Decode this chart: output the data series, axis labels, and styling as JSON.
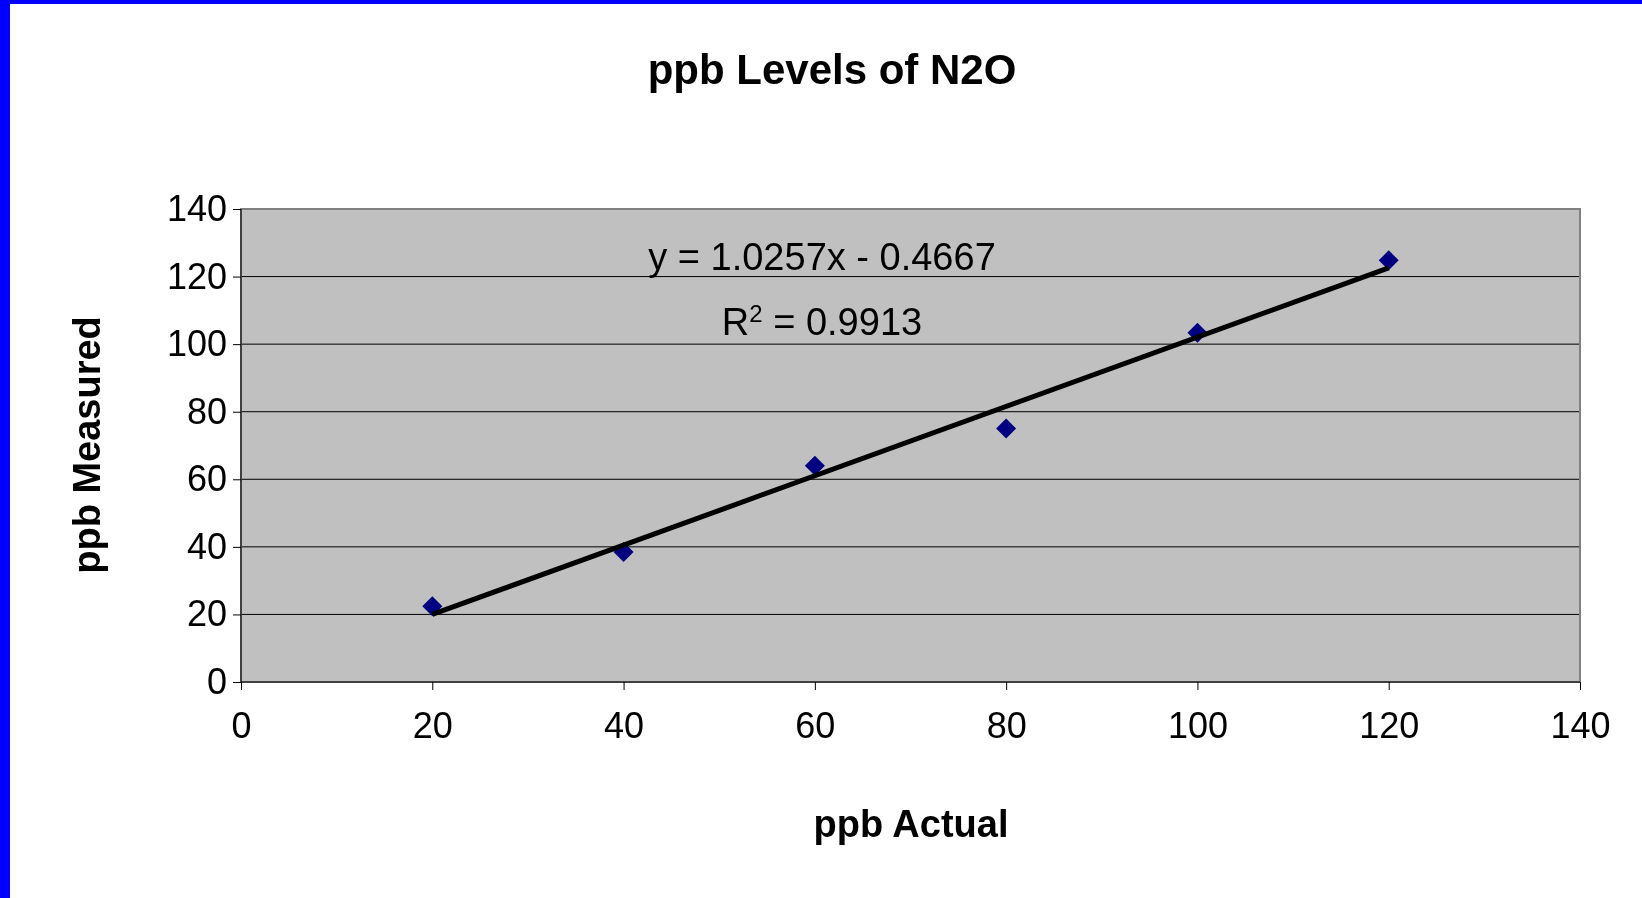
{
  "chart_data": {
    "type": "scatter",
    "title": "ppb Levels of N2O",
    "xlabel": "ppb Actual",
    "ylabel": "ppb Measured",
    "annotations": [
      "y = 1.0257x - 0.4667",
      "R$^{2}$ = 0.9913"
    ],
    "series": [
      {
        "color": "#000080",
        "marker": "diamond",
        "x": [
          20,
          40,
          60,
          80,
          100,
          120
        ],
        "values": [
          22.4,
          38.5,
          64,
          75,
          103.4,
          124.8
        ]
      },
      {
        "type": "line",
        "marker": "none",
        "color": "#000000",
        "x": [
          20,
          120
        ],
        "values": [
          20,
          122.6
        ]
      }
    ],
    "xlim": [
      0,
      140
    ],
    "xticks": [
      0,
      20,
      40,
      60,
      80,
      100,
      120,
      140
    ],
    "ylim": [
      0,
      140
    ],
    "yticks": [
      0,
      20,
      40,
      60,
      80,
      100,
      120,
      140
    ],
    "grid": "y",
    "line_style": "solid"
  }
}
